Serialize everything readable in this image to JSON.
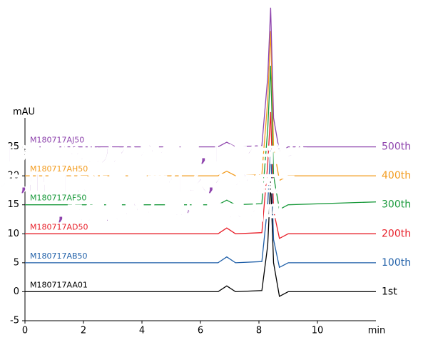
{
  "chart_data": {
    "type": "line",
    "y_label": "mAU",
    "x_label": "min",
    "xlim": [
      0,
      12
    ],
    "xticks": [
      0,
      2,
      4,
      6,
      8,
      10
    ],
    "ylim": [
      -5,
      30
    ],
    "yticks": [
      -5,
      0,
      5,
      10,
      15,
      20,
      25
    ],
    "x": [
      0,
      6.6,
      6.9,
      7.2,
      8.1,
      8.3,
      8.4,
      8.5,
      8.7,
      9.0,
      12
    ],
    "series": [
      {
        "name": "1st",
        "sample": "M180717AA01",
        "color": "#000000",
        "values": [
          0,
          0,
          1,
          0,
          0.2,
          8,
          19,
          5,
          -0.8,
          0,
          0
        ]
      },
      {
        "name": "100th",
        "sample": "M180717AB50",
        "color": "#1f5fa8",
        "values": [
          5,
          5,
          6,
          5,
          5.2,
          15,
          25,
          9,
          4.2,
          5,
          5
        ]
      },
      {
        "name": "200th",
        "sample": "M180717AD50",
        "color": "#e8202a",
        "values": [
          10,
          10,
          11,
          10,
          10.2,
          22,
          31,
          14,
          9.2,
          10,
          10
        ]
      },
      {
        "name": "300th",
        "sample": "M180717AF50",
        "color": "#1a9a3c",
        "values": [
          15,
          15,
          15.8,
          15,
          15.2,
          28,
          39,
          20,
          14.2,
          15,
          15.5
        ]
      },
      {
        "name": "400th",
        "sample": "M180717AH50",
        "color": "#f39c1f",
        "values": [
          20,
          20,
          20.8,
          20,
          20.2,
          33,
          45,
          25,
          19.2,
          20,
          20
        ]
      },
      {
        "name": "500th",
        "sample": "M180717AJ50",
        "color": "#8e44ad",
        "values": [
          25,
          25,
          25.8,
          25,
          25.2,
          37,
          49,
          30,
          24.2,
          25,
          25
        ]
      }
    ],
    "watermark": [
      "上海哪些地方住宿便宜,上海住宿推",
      "荐,出国旅游需要带什么,住宿酒店",
      ",乌镇民宿在西栅景区内吗"
    ]
  }
}
